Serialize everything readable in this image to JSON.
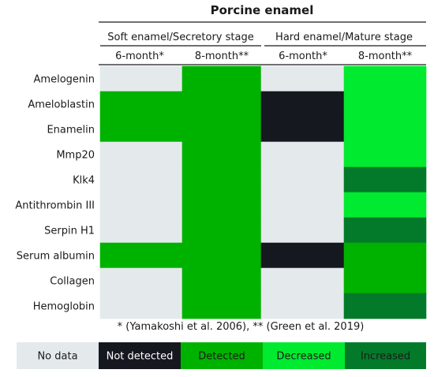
{
  "colors": {
    "no_data": "#E4E9EC",
    "not_detected": "#15181F",
    "detected": "#00B200",
    "decreased": "#00EA30",
    "increased": "#037A2A",
    "rule": "#1a1a1a",
    "text": "#1a1a1a"
  },
  "chart_data": {
    "type": "heatmap",
    "title": "Porcine enamel",
    "groups": [
      {
        "label": "Soft enamel/Secretory stage",
        "columns": [
          0,
          1
        ]
      },
      {
        "label": "Hard enamel/Mature stage",
        "columns": [
          2,
          3
        ]
      }
    ],
    "columns": [
      "6-month*",
      "8-month**",
      "6-month*",
      "8-month**"
    ],
    "rows": [
      "Amelogenin",
      "Ameloblastin",
      "Enamelin",
      "Mmp20",
      "Klk4",
      "Antithrombin III",
      "Serpin H1",
      "Serum albumin",
      "Collagen",
      "Hemoglobin"
    ],
    "values": [
      [
        "no_data",
        "detected",
        "no_data",
        "decreased"
      ],
      [
        "detected",
        "detected",
        "not_detected",
        "decreased"
      ],
      [
        "detected",
        "detected",
        "not_detected",
        "decreased"
      ],
      [
        "no_data",
        "detected",
        "no_data",
        "decreased"
      ],
      [
        "no_data",
        "detected",
        "no_data",
        "increased"
      ],
      [
        "no_data",
        "detected",
        "no_data",
        "decreased"
      ],
      [
        "no_data",
        "detected",
        "no_data",
        "increased"
      ],
      [
        "detected",
        "detected",
        "not_detected",
        "detected"
      ],
      [
        "no_data",
        "detected",
        "no_data",
        "detected"
      ],
      [
        "no_data",
        "detected",
        "no_data",
        "increased"
      ]
    ],
    "footnote": "* (Yamakoshi et al. 2006), ** (Green et al. 2019)",
    "legend": [
      {
        "key": "no_data",
        "label": "No data"
      },
      {
        "key": "not_detected",
        "label": "Not detected"
      },
      {
        "key": "detected",
        "label": "Detected"
      },
      {
        "key": "decreased",
        "label": "Decreased"
      },
      {
        "key": "increased",
        "label": "Increased"
      }
    ]
  }
}
